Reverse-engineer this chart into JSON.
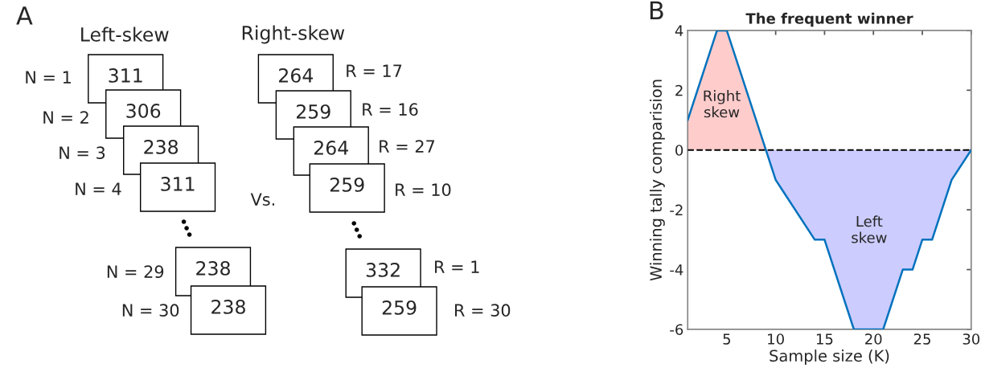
{
  "chart_data": [
    {
      "type": "other",
      "annotations": [
        "A",
        "Left-skew",
        "Right-skew",
        "Vs.",
        "N = 1",
        "311",
        "N = 2",
        "306",
        "N = 3",
        "238",
        "N = 4",
        "311",
        "N = 29",
        "238",
        "N = 30",
        "238",
        "264",
        "R = 17",
        "259",
        "R = 16",
        "264",
        "R = 27",
        "259",
        "R = 10",
        "332",
        "R = 1",
        "259",
        "R = 30"
      ]
    },
    {
      "type": "line",
      "title": "The frequent winner",
      "xlabel": "Sample size (K)",
      "ylabel": "Winning tally comparision",
      "annotations": [
        "B",
        "Right\nskew",
        "Left\nskew"
      ],
      "xlim": [
        1,
        30
      ],
      "xticks": [
        5,
        10,
        15,
        20,
        25,
        30
      ],
      "ylim": [
        -6,
        4
      ],
      "yticks": [
        -6,
        -4,
        -2,
        0,
        2,
        4
      ],
      "ref_lines": [
        {
          "axis": "y",
          "value": 0,
          "color": "#000000",
          "line_style": "dashed"
        }
      ],
      "series": [
        {
          "type": "area",
          "color": "#ffcccc",
          "x": [
            1,
            4,
            5,
            9
          ],
          "values": [
            1,
            4,
            4,
            0
          ]
        },
        {
          "type": "area",
          "color": "#ccccff",
          "x": [
            9,
            10,
            11,
            14,
            15,
            18,
            21,
            23,
            24,
            25,
            26,
            28,
            30
          ],
          "values": [
            0,
            -1,
            -1.5,
            -3,
            -3,
            -6,
            -6,
            -4,
            -4,
            -3,
            -3,
            -1,
            0
          ]
        },
        {
          "type": "line",
          "color": "#0072bd",
          "x": [
            1,
            4,
            5,
            9,
            10,
            11,
            14,
            15,
            18,
            21,
            23,
            24,
            25,
            26,
            28,
            30
          ],
          "values": [
            1,
            4,
            4,
            0,
            -1,
            -1.5,
            -3,
            -3,
            -6,
            -6,
            -4,
            -4,
            -3,
            -3,
            -1,
            0
          ]
        }
      ]
    }
  ]
}
